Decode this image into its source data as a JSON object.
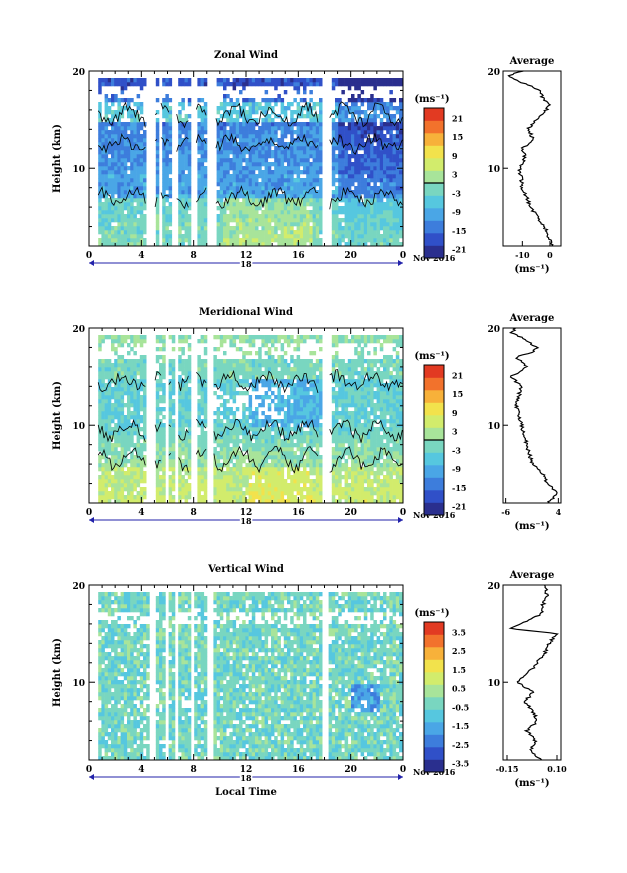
{
  "chart_data": [
    {
      "type": "heatmap",
      "title": "Zonal Wind",
      "ylabel": "Height (km)",
      "xlabel": "",
      "xlim": [
        0,
        24
      ],
      "ylim": [
        2,
        20
      ],
      "xticks": [
        "0",
        "4",
        "8",
        "12",
        "16",
        "20",
        "0"
      ],
      "yticks": [
        "20",
        "10"
      ],
      "date_day": "18",
      "date_month": "Nov 2016",
      "unit": "(ms⁻¹)",
      "colorbar": {
        "labels": [
          "21",
          "15",
          "9",
          "3",
          "-3",
          "-9",
          "-15",
          "-21"
        ],
        "range": [
          -24,
          24
        ],
        "contour_at": 0
      },
      "gaps": [
        [
          0,
          0.6
        ],
        [
          4.3,
          5.0
        ],
        [
          5.3,
          5.5
        ],
        [
          6.2,
          6.7
        ],
        [
          7.7,
          8.2
        ],
        [
          9.0,
          9.6
        ],
        [
          17.6,
          18.4
        ]
      ],
      "profile": {
        "title": "Average",
        "xticks": [
          "-10",
          "0"
        ],
        "xlim": [
          -17,
          4
        ],
        "unit": "(ms⁻¹)",
        "heights": [
          2,
          4,
          6,
          8,
          10,
          11,
          12,
          13,
          14,
          15,
          15.8,
          16.5,
          17,
          18,
          18.5,
          19,
          19.5,
          20
        ],
        "values": [
          1,
          -2,
          -7,
          -10,
          -11,
          -9,
          -10,
          -6,
          -8,
          -5,
          -2,
          0,
          -2,
          -4,
          -7,
          -12,
          -15,
          -10
        ]
      }
    },
    {
      "type": "heatmap",
      "title": "Meridional Wind",
      "ylabel": "Height (km)",
      "xlabel": "",
      "xlim": [
        0,
        24
      ],
      "ylim": [
        2,
        20
      ],
      "xticks": [
        "0",
        "4",
        "8",
        "12",
        "16",
        "20",
        "0"
      ],
      "yticks": [
        "20",
        "10"
      ],
      "date_day": "18",
      "date_month": "Nov 2016",
      "unit": "(ms⁻¹)",
      "colorbar": {
        "labels": [
          "21",
          "15",
          "9",
          "3",
          "-3",
          "-9",
          "-15",
          "-21"
        ],
        "range": [
          -24,
          24
        ],
        "contour_at": 0
      },
      "gaps": [
        [
          0,
          0.6
        ],
        [
          4.3,
          5.0
        ],
        [
          5.6,
          6.0
        ],
        [
          6.4,
          6.8
        ],
        [
          7.7,
          8.2
        ],
        [
          9.0,
          9.5
        ],
        [
          17.6,
          18.4
        ]
      ],
      "profile": {
        "title": "Average",
        "xticks": [
          "-6",
          "4"
        ],
        "xlim": [
          -6.5,
          4.5
        ],
        "unit": "(ms⁻¹)",
        "heights": [
          2,
          3,
          4,
          5,
          6,
          8,
          10,
          12,
          14,
          15,
          16,
          17,
          17.5,
          18,
          19,
          19.5,
          20
        ],
        "values": [
          2,
          4,
          2,
          1,
          -1,
          -2,
          -3,
          -4,
          -3,
          -5,
          -2,
          -4,
          -1,
          0,
          -3,
          -5,
          -4
        ]
      }
    },
    {
      "type": "heatmap",
      "title": "Vertical Wind",
      "ylabel": "Height (km)",
      "xlabel": "Local Time",
      "xlim": [
        0,
        24
      ],
      "ylim": [
        2,
        20
      ],
      "xticks": [
        "0",
        "4",
        "8",
        "12",
        "16",
        "20",
        "0"
      ],
      "yticks": [
        "20",
        "10"
      ],
      "date_day": "18",
      "date_month": "Nov 2016",
      "unit": "(ms⁻¹)",
      "colorbar": {
        "labels": [
          "3.5",
          "2.5",
          "1.5",
          "0.5",
          "-0.5",
          "-1.5",
          "-2.5",
          "-3.5"
        ],
        "range": [
          -4,
          4
        ],
        "contour_at": null
      },
      "gaps": [
        [
          0,
          0.6
        ],
        [
          4.4,
          5.0
        ],
        [
          5.6,
          6.0
        ],
        [
          6.4,
          6.8
        ],
        [
          7.6,
          8.0
        ],
        [
          9.0,
          9.5
        ],
        [
          17.6,
          18.3
        ]
      ],
      "profile": {
        "title": "Average",
        "xticks": [
          "-0.15",
          "0.10"
        ],
        "xlim": [
          -0.17,
          0.12
        ],
        "unit": "(ms⁻¹)",
        "heights": [
          2,
          3,
          4,
          5,
          6,
          7,
          8,
          9,
          10,
          11,
          12,
          13,
          14,
          15,
          15.5,
          16,
          17,
          18,
          19,
          20
        ],
        "values": [
          0.02,
          -0.03,
          -0.01,
          -0.05,
          0.0,
          -0.02,
          -0.06,
          -0.02,
          -0.1,
          -0.04,
          0.0,
          0.04,
          0.06,
          0.1,
          -0.13,
          -0.08,
          0.02,
          0.03,
          0.05,
          0.04
        ]
      }
    }
  ]
}
